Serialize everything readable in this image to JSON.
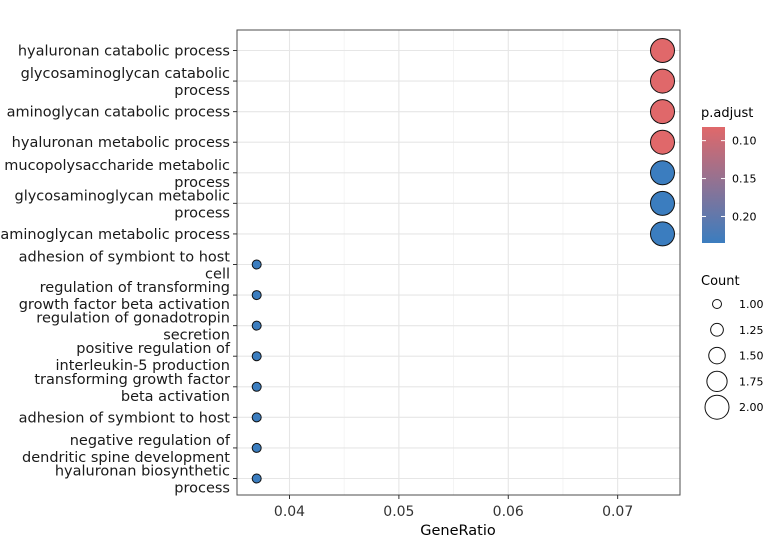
{
  "chart_data": {
    "type": "scatter",
    "xlabel": "GeneRatio",
    "ylabel": "",
    "xlim": [
      0.0352,
      0.0757
    ],
    "xticks": [
      0.04,
      0.05,
      0.06,
      0.07
    ],
    "xtick_labels": [
      "0.04",
      "0.05",
      "0.06",
      "0.07"
    ],
    "grid": true,
    "categories": [
      [
        "hyaluronan catabolic process"
      ],
      [
        "glycosaminoglycan catabolic",
        "process"
      ],
      [
        "aminoglycan catabolic process"
      ],
      [
        "hyaluronan metabolic process"
      ],
      [
        "mucopolysaccharide metabolic",
        "process"
      ],
      [
        "glycosaminoglycan metabolic",
        "process"
      ],
      [
        "aminoglycan metabolic process"
      ],
      [
        "adhesion of symbiont to host",
        "cell"
      ],
      [
        "regulation of transforming",
        "growth factor beta activation"
      ],
      [
        "regulation of gonadotropin",
        "secretion"
      ],
      [
        "positive regulation of",
        "interleukin-5 production"
      ],
      [
        "transforming growth factor",
        "beta activation"
      ],
      [
        "adhesion of symbiont to host"
      ],
      [
        "negative regulation of",
        "dendritic spine development"
      ],
      [
        "hyaluronan biosynthetic",
        "process"
      ]
    ],
    "points": [
      {
        "x": 0.0741,
        "count": 2,
        "p_adjust": 0.082
      },
      {
        "x": 0.0741,
        "count": 2,
        "p_adjust": 0.082
      },
      {
        "x": 0.0741,
        "count": 2,
        "p_adjust": 0.082
      },
      {
        "x": 0.0741,
        "count": 2,
        "p_adjust": 0.082
      },
      {
        "x": 0.0741,
        "count": 2,
        "p_adjust": 0.235
      },
      {
        "x": 0.0741,
        "count": 2,
        "p_adjust": 0.235
      },
      {
        "x": 0.0741,
        "count": 2,
        "p_adjust": 0.235
      },
      {
        "x": 0.037,
        "count": 1,
        "p_adjust": 0.235
      },
      {
        "x": 0.037,
        "count": 1,
        "p_adjust": 0.235
      },
      {
        "x": 0.037,
        "count": 1,
        "p_adjust": 0.235
      },
      {
        "x": 0.037,
        "count": 1,
        "p_adjust": 0.235
      },
      {
        "x": 0.037,
        "count": 1,
        "p_adjust": 0.235
      },
      {
        "x": 0.037,
        "count": 1,
        "p_adjust": 0.235
      },
      {
        "x": 0.037,
        "count": 1,
        "p_adjust": 0.235
      },
      {
        "x": 0.037,
        "count": 1,
        "p_adjust": 0.235
      }
    ],
    "color_legend": {
      "title": "p.adjust",
      "range": [
        0.082,
        0.235
      ],
      "ticks": [
        0.1,
        0.15,
        0.2
      ],
      "tick_labels": [
        "0.10",
        "0.15",
        "0.20"
      ],
      "color_low_value": "#E0686A",
      "color_high_value": "#3B7DBF"
    },
    "size_legend": {
      "title": "Count",
      "values": [
        1.0,
        1.25,
        1.5,
        1.75,
        2.0
      ],
      "labels": [
        "1.00",
        "1.25",
        "1.50",
        "1.75",
        "2.00"
      ]
    }
  }
}
